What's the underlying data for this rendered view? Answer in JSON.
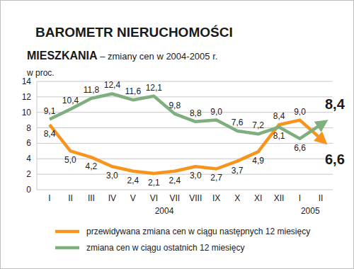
{
  "chart_data": {
    "type": "line",
    "title": "BAROMETR NIERUCHOMOŚCI",
    "subtitle": "MIESZKANIA – zmiany cen w 2004-2005 r.",
    "y_label": "w proc.",
    "categories": [
      "I",
      "II",
      "III",
      "IV",
      "V",
      "VI",
      "VII",
      "VIII",
      "IX",
      "X",
      "XI",
      "XII",
      "I",
      "II"
    ],
    "groups": [
      {
        "label": "2004",
        "from": 0,
        "to": 11
      },
      {
        "label": "2005",
        "from": 12,
        "to": 13
      }
    ],
    "series": [
      {
        "name": "przewidywana zmiana cen w ciągu następnych 12 miesięcy",
        "color": "#f7941d",
        "values": [
          8.4,
          5.0,
          4.2,
          3.0,
          2.4,
          2.1,
          2.4,
          3.0,
          2.7,
          3.7,
          4.9,
          8.4,
          9.0,
          6.6
        ],
        "value_labels": [
          "8,4",
          "5,0",
          "4,2",
          "3,0",
          "2,4",
          "2,1",
          "2,4",
          "3,0",
          "2,7",
          "3,7",
          "4,9",
          "8,4",
          "9,0",
          "6,6"
        ]
      },
      {
        "name": "zmiana cen w ciągu ostatnich 12 miesięcy",
        "color": "#7fae7f",
        "values": [
          9.1,
          10.4,
          11.8,
          12.4,
          11.6,
          12.1,
          9.8,
          8.8,
          9.0,
          7.6,
          7.2,
          8.1,
          6.6,
          8.4
        ],
        "value_labels": [
          "9,1",
          "10,4",
          "11,8",
          "12,4",
          "11,6",
          "12,1",
          "9,8",
          "8,8",
          "9,0",
          "7,6",
          "7,2",
          "8,1",
          "6,6",
          "8,4"
        ]
      }
    ],
    "ylim": [
      0,
      14
    ],
    "yticks": [
      0,
      2,
      4,
      6,
      8,
      10,
      12,
      14
    ],
    "grid": true,
    "data_labels": true,
    "legend": "bottom"
  }
}
